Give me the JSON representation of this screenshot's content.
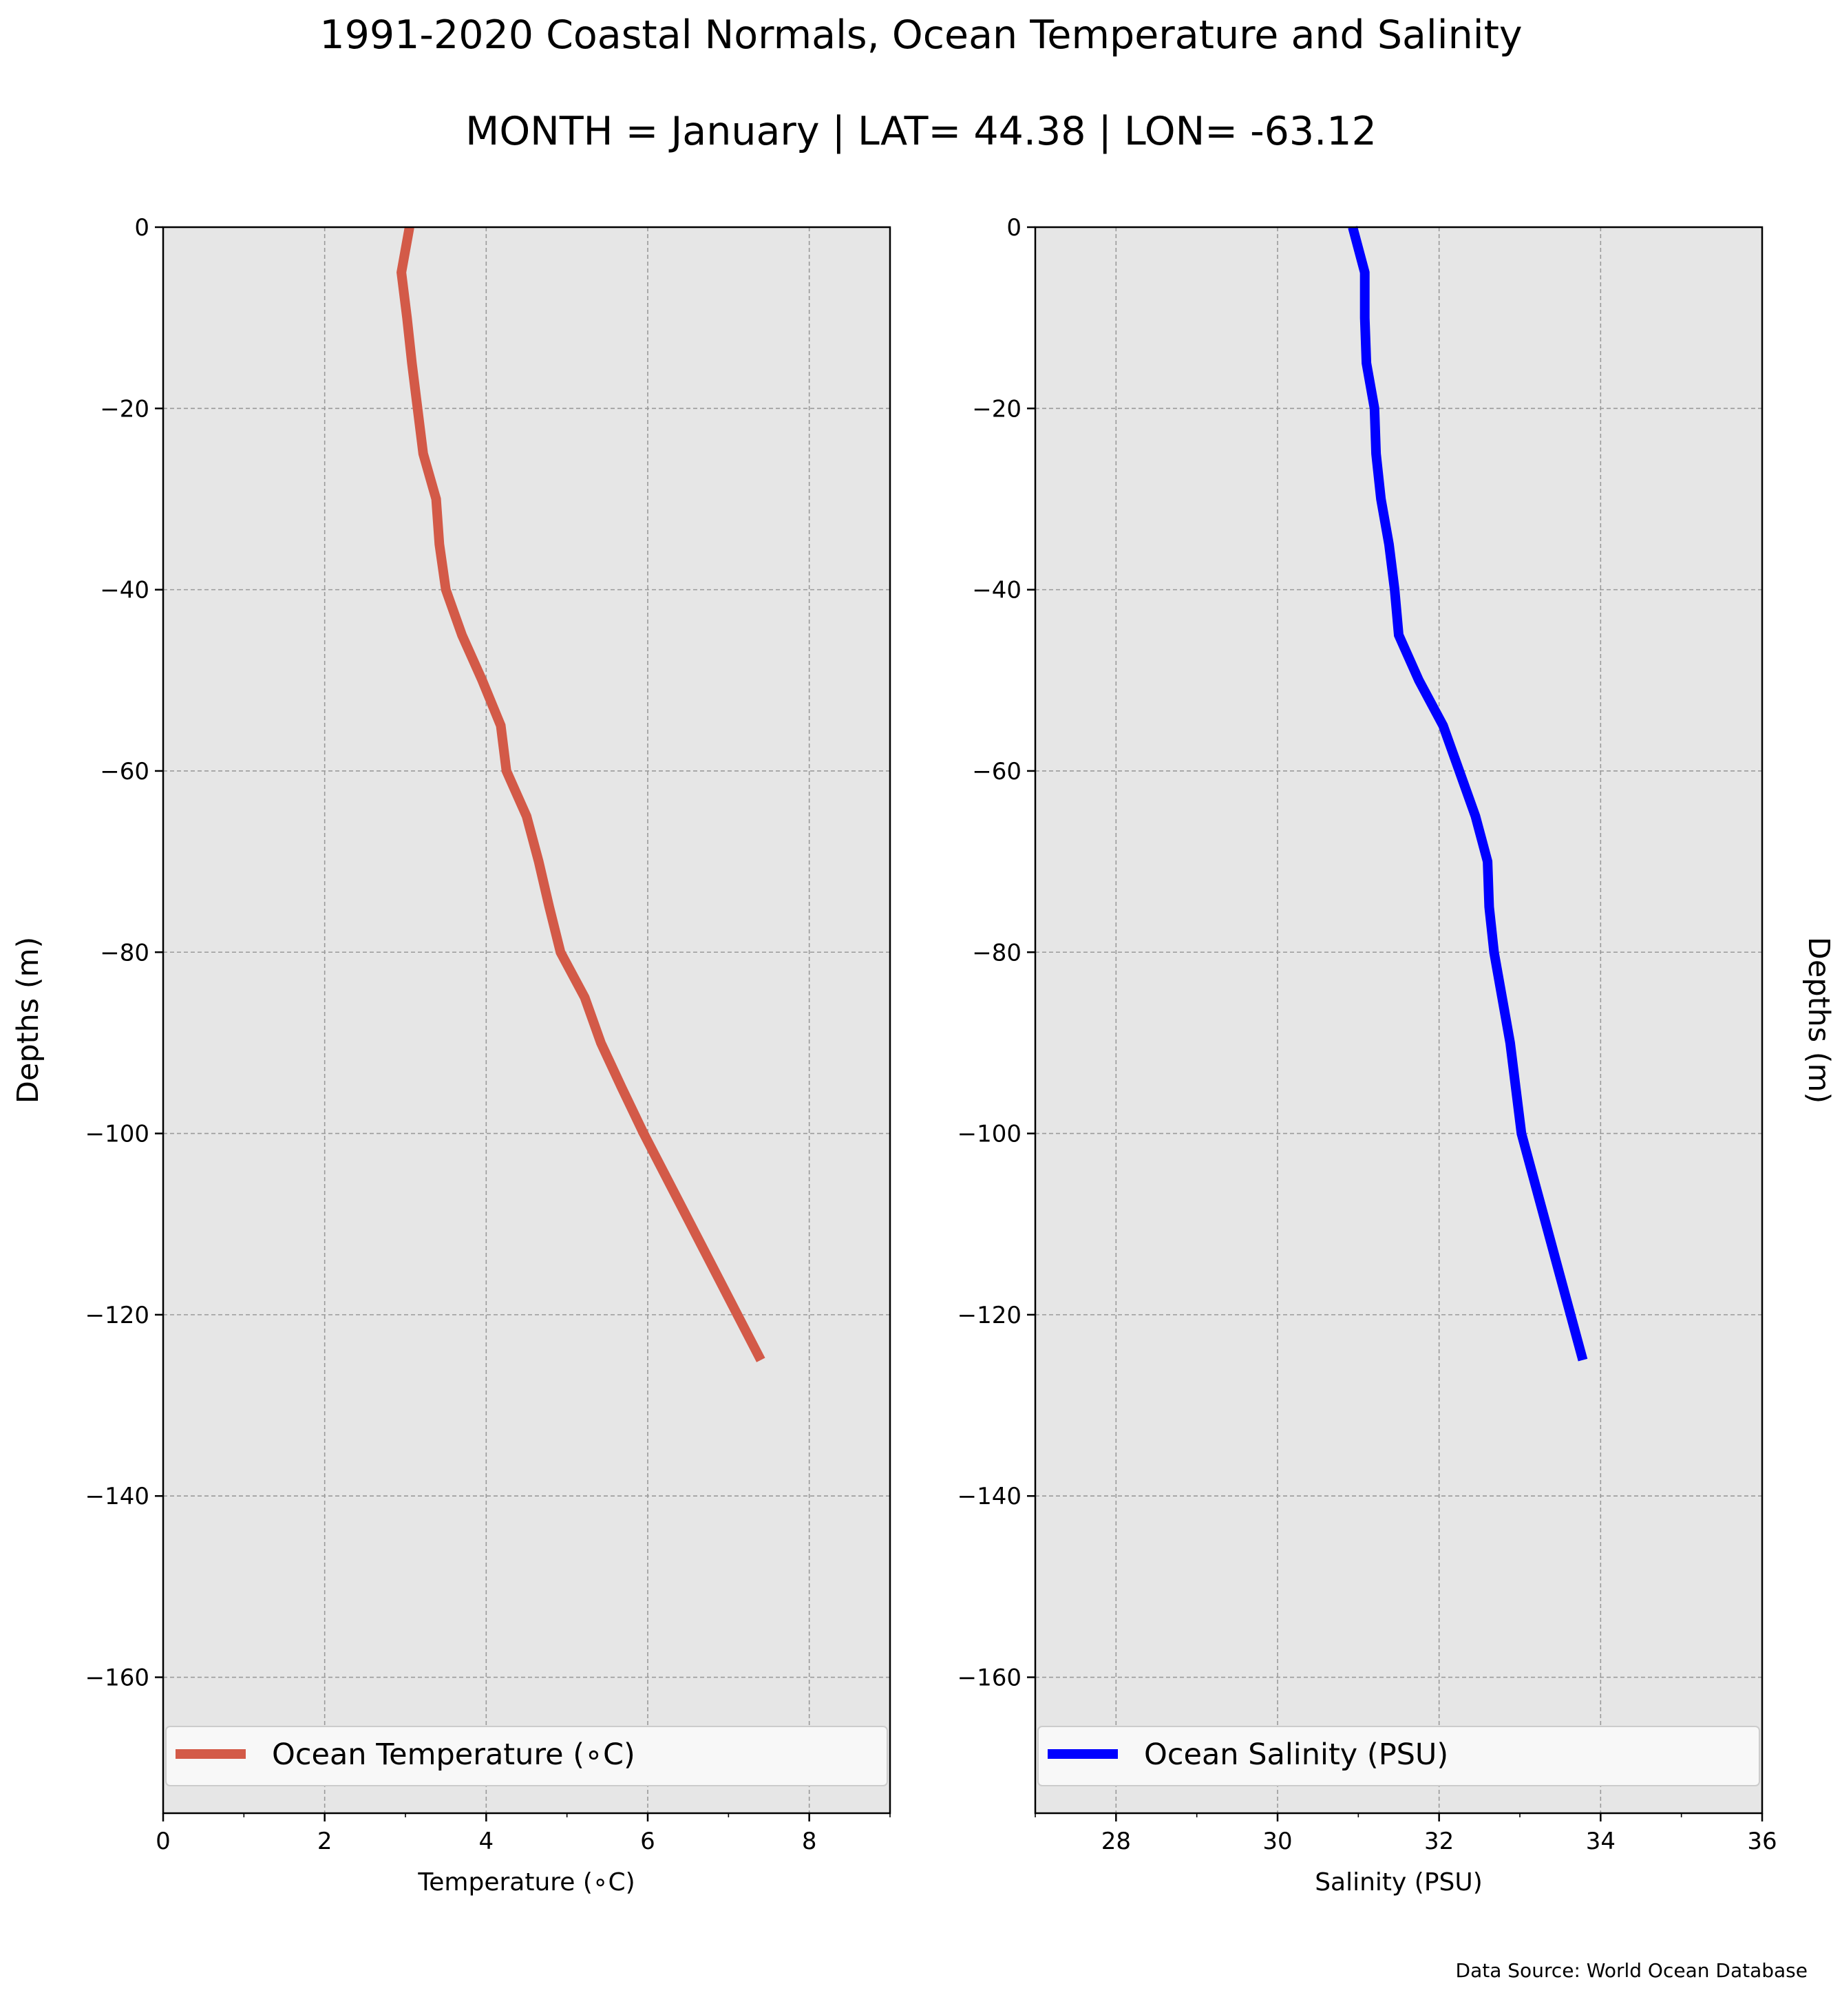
{
  "title": "1991-2020 Coastal Normals, Ocean Temperature and Salinity",
  "subtitle": "MONTH = January | LAT= 44.38 | LON= -63.12",
  "source": "Data Source: World Ocean Database",
  "chart_data": [
    {
      "type": "line",
      "xlabel": "Temperature (∘C)",
      "ylabel": "Depths (m)",
      "ylabel_side": "left",
      "xlim": [
        0,
        9
      ],
      "ylim": [
        -175,
        0
      ],
      "xticks": [
        0,
        2,
        4,
        6,
        8
      ],
      "xtick_labels": [
        "0",
        "2",
        "4",
        "6",
        "8"
      ],
      "yticks": [
        0,
        -20,
        -40,
        -60,
        -80,
        -100,
        -120,
        -140,
        -160
      ],
      "ytick_labels": [
        "0",
        "−20",
        "−40",
        "−60",
        "−80",
        "−100",
        "−120",
        "−140",
        "−160"
      ],
      "grid": true,
      "legend": "bottom",
      "background": "#e6e6e6",
      "series": [
        {
          "name": "Ocean Temperature (∘C)",
          "color": "#d35a48",
          "depth": [
            0,
            -5,
            -10,
            -15,
            -20,
            -25,
            -30,
            -35,
            -40,
            -45,
            -50,
            -55,
            -60,
            -65,
            -70,
            -75,
            -80,
            -85,
            -90,
            -95,
            -100,
            -125
          ],
          "values": [
            3.05,
            2.95,
            3.02,
            3.08,
            3.15,
            3.22,
            3.38,
            3.42,
            3.5,
            3.7,
            3.95,
            4.18,
            4.25,
            4.5,
            4.65,
            4.78,
            4.92,
            5.22,
            5.42,
            5.68,
            5.95,
            7.4
          ]
        }
      ]
    },
    {
      "type": "line",
      "xlabel": "Salinity (PSU)",
      "ylabel": "Depths (m)",
      "ylabel_side": "right",
      "xlim": [
        27,
        36
      ],
      "ylim": [
        -175,
        0
      ],
      "xticks": [
        28,
        30,
        32,
        34,
        36
      ],
      "xtick_labels": [
        "28",
        "30",
        "32",
        "34",
        "36"
      ],
      "yticks": [
        0,
        -20,
        -40,
        -60,
        -80,
        -100,
        -120,
        -140,
        -160
      ],
      "ytick_labels": [
        "0",
        "−20",
        "−40",
        "−60",
        "−80",
        "−100",
        "−120",
        "−140",
        "−160"
      ],
      "grid": true,
      "legend": "bottom",
      "background": "#e6e6e6",
      "series": [
        {
          "name": "Ocean Salinity (PSU)",
          "color": "#0000ff",
          "depth": [
            0,
            -5,
            -10,
            -15,
            -20,
            -25,
            -30,
            -35,
            -40,
            -45,
            -50,
            -55,
            -60,
            -65,
            -70,
            -75,
            -80,
            -85,
            -90,
            -95,
            -100,
            -125
          ],
          "values": [
            30.93,
            31.08,
            31.08,
            31.1,
            31.2,
            31.22,
            31.28,
            31.38,
            31.45,
            31.5,
            31.75,
            32.05,
            32.25,
            32.45,
            32.6,
            32.62,
            32.68,
            32.78,
            32.88,
            32.95,
            33.02,
            33.78
          ]
        }
      ]
    }
  ]
}
